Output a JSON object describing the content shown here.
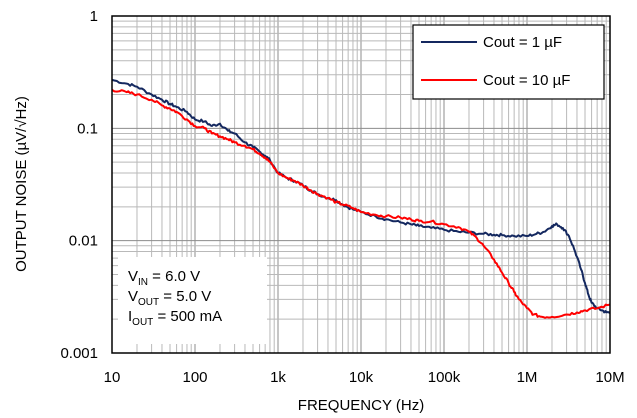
{
  "chart_data": {
    "type": "line",
    "title": "",
    "xlabel": "FREQUENCY (Hz)",
    "ylabel": "OUTPUT NOISE (µV/√Hz)",
    "xscale": "log",
    "yscale": "log",
    "xlim": [
      10,
      10000000
    ],
    "ylim": [
      0.001,
      1
    ],
    "grid": true,
    "x_ticks": [
      {
        "value": 10,
        "label": "10"
      },
      {
        "value": 100,
        "label": "100"
      },
      {
        "value": 1000,
        "label": "1k"
      },
      {
        "value": 10000,
        "label": "10k"
      },
      {
        "value": 100000,
        "label": "100k"
      },
      {
        "value": 1000000,
        "label": "1M"
      },
      {
        "value": 10000000,
        "label": "10M"
      }
    ],
    "y_ticks": [
      {
        "value": 1,
        "label": "1"
      },
      {
        "value": 0.1,
        "label": "0.1"
      },
      {
        "value": 0.01,
        "label": "0.01"
      },
      {
        "value": 0.001,
        "label": "0.001"
      }
    ],
    "legend": {
      "placement": "top-right"
    },
    "series": [
      {
        "name": "Cout = 1 µF",
        "color": "#14285f",
        "x": [
          10,
          15,
          20,
          30,
          40,
          50,
          60,
          80,
          100,
          130,
          160,
          200,
          250,
          300,
          400,
          500,
          600,
          700,
          800,
          1000,
          1300,
          1600,
          2000,
          2500,
          3000,
          4000,
          5000,
          6000,
          8000,
          10000,
          15000,
          20000,
          30000,
          40000,
          50000,
          70000,
          100000,
          150000,
          200000,
          300000,
          400000,
          500000,
          700000,
          1000000,
          1300000,
          1600000,
          2000000,
          2300000,
          2700000,
          3200000,
          3800000,
          4500000,
          5000000,
          5500000,
          6000000,
          7000000,
          8000000,
          9000000,
          10000000
        ],
        "y": [
          0.27,
          0.25,
          0.235,
          0.2,
          0.18,
          0.165,
          0.155,
          0.14,
          0.12,
          0.115,
          0.105,
          0.11,
          0.095,
          0.09,
          0.075,
          0.068,
          0.062,
          0.057,
          0.052,
          0.04,
          0.036,
          0.034,
          0.031,
          0.028,
          0.026,
          0.024,
          0.023,
          0.021,
          0.019,
          0.018,
          0.0165,
          0.0155,
          0.0145,
          0.014,
          0.0135,
          0.013,
          0.0125,
          0.012,
          0.0118,
          0.0115,
          0.0113,
          0.0112,
          0.011,
          0.011,
          0.0115,
          0.012,
          0.0135,
          0.014,
          0.013,
          0.011,
          0.008,
          0.0055,
          0.0042,
          0.0033,
          0.0028,
          0.0025,
          0.0024,
          0.0023,
          0.0023
        ]
      },
      {
        "name": "Cout = 10 µF",
        "color": "#ff0000",
        "x": [
          10,
          15,
          20,
          30,
          40,
          50,
          60,
          80,
          100,
          130,
          160,
          200,
          250,
          300,
          400,
          500,
          600,
          700,
          800,
          1000,
          1300,
          1600,
          2000,
          2500,
          3000,
          4000,
          5000,
          6000,
          8000,
          10000,
          15000,
          20000,
          30000,
          40000,
          50000,
          70000,
          100000,
          150000,
          200000,
          250000,
          300000,
          400000,
          500000,
          600000,
          700000,
          800000,
          1000000,
          1200000,
          1500000,
          2000000,
          3000000,
          4000000,
          5000000,
          7000000,
          10000000
        ],
        "y": [
          0.22,
          0.21,
          0.2,
          0.18,
          0.16,
          0.15,
          0.14,
          0.12,
          0.105,
          0.1,
          0.09,
          0.085,
          0.08,
          0.075,
          0.07,
          0.065,
          0.06,
          0.055,
          0.05,
          0.04,
          0.036,
          0.034,
          0.031,
          0.028,
          0.026,
          0.024,
          0.022,
          0.021,
          0.0195,
          0.018,
          0.017,
          0.0165,
          0.016,
          0.0155,
          0.015,
          0.0148,
          0.014,
          0.0132,
          0.012,
          0.0105,
          0.009,
          0.0068,
          0.0052,
          0.0042,
          0.0035,
          0.003,
          0.0025,
          0.0022,
          0.0021,
          0.0021,
          0.0022,
          0.0023,
          0.0024,
          0.0025,
          0.0027
        ]
      }
    ],
    "annotation": {
      "lines": [
        {
          "main": "V",
          "sub": "IN",
          "rest": " = 6.0 V"
        },
        {
          "main": "V",
          "sub": "OUT",
          "rest": " = 5.0 V"
        },
        {
          "main": "I",
          "sub": "OUT",
          "rest": " = 500 mA"
        }
      ]
    }
  }
}
